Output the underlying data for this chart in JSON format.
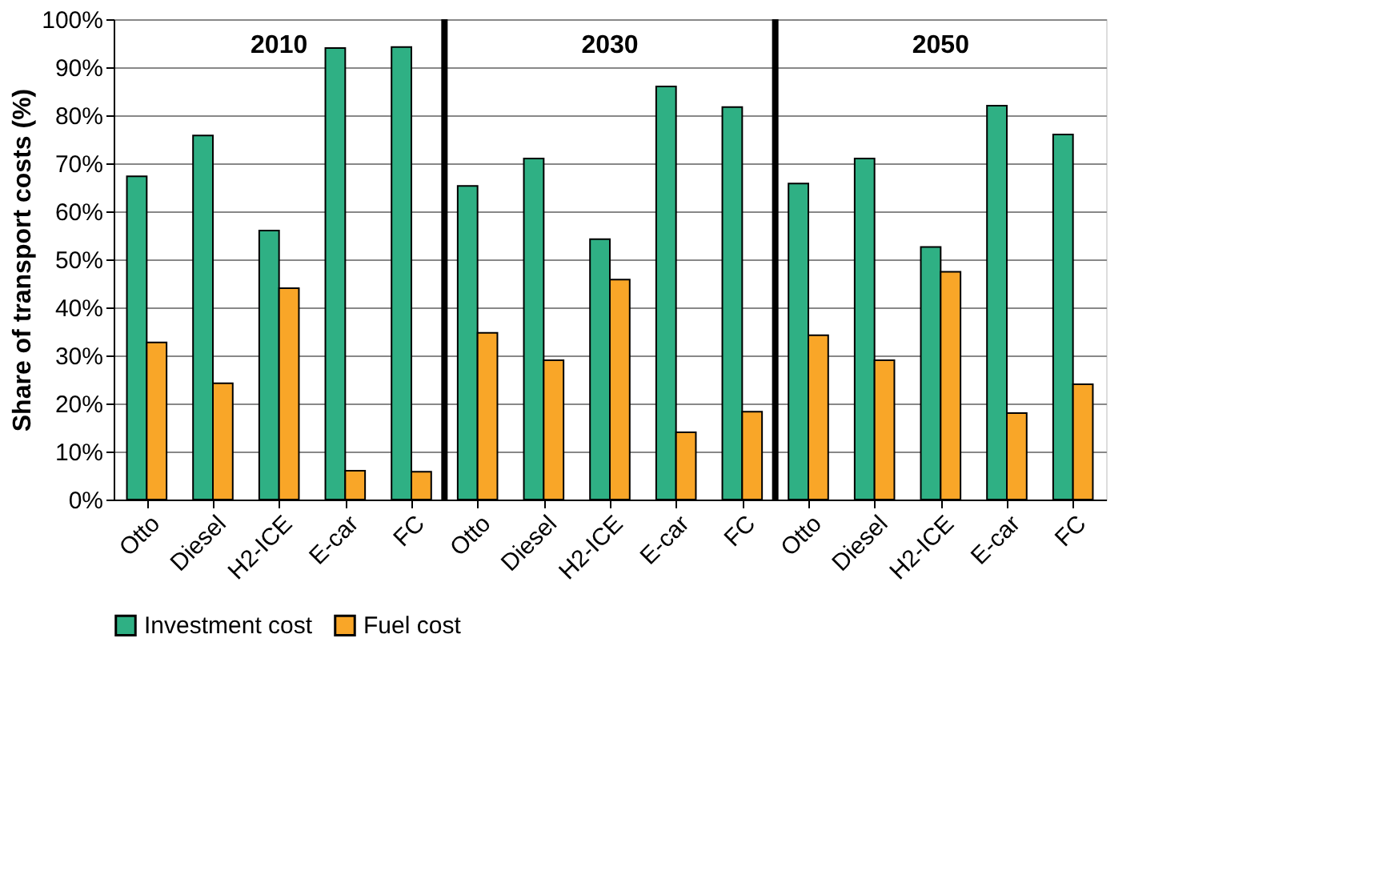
{
  "chart_data": {
    "type": "bar",
    "ylabel": "Share of transport costs (%)",
    "categories": [
      "Otto",
      "Diesel",
      "H2-ICE",
      "E-car",
      "FC",
      "Otto",
      "Diesel",
      "H2-ICE",
      "E-car",
      "FC",
      "Otto",
      "Diesel",
      "H2-ICE",
      "E-car",
      "FC"
    ],
    "series": [
      {
        "name": "Investment cost",
        "color": "#2fb084",
        "values": [
          67.3,
          75.8,
          56,
          94,
          94.2,
          65.3,
          71,
          54.2,
          86,
          81.7,
          65.8,
          71,
          52.6,
          82,
          76
        ]
      },
      {
        "name": "Fuel cost",
        "color": "#f9a628",
        "values": [
          32.7,
          24.2,
          44,
          6,
          5.8,
          34.7,
          29,
          45.8,
          14,
          18.3,
          34.2,
          29,
          47.4,
          18,
          24
        ]
      }
    ],
    "ylim": [
      0,
      100
    ],
    "yticks": [
      {
        "value": 0,
        "label": "0%"
      },
      {
        "value": 10,
        "label": "10%"
      },
      {
        "value": 20,
        "label": "20%"
      },
      {
        "value": 30,
        "label": "30%"
      },
      {
        "value": 40,
        "label": "40%"
      },
      {
        "value": 50,
        "label": "50%"
      },
      {
        "value": 60,
        "label": "60%"
      },
      {
        "value": 70,
        "label": "70%"
      },
      {
        "value": 80,
        "label": "80%"
      },
      {
        "value": 90,
        "label": "90%"
      },
      {
        "value": 100,
        "label": "100%"
      }
    ],
    "annotations": [
      "2010",
      "2030",
      "2050"
    ],
    "grid": "y",
    "legend": "bottom"
  }
}
